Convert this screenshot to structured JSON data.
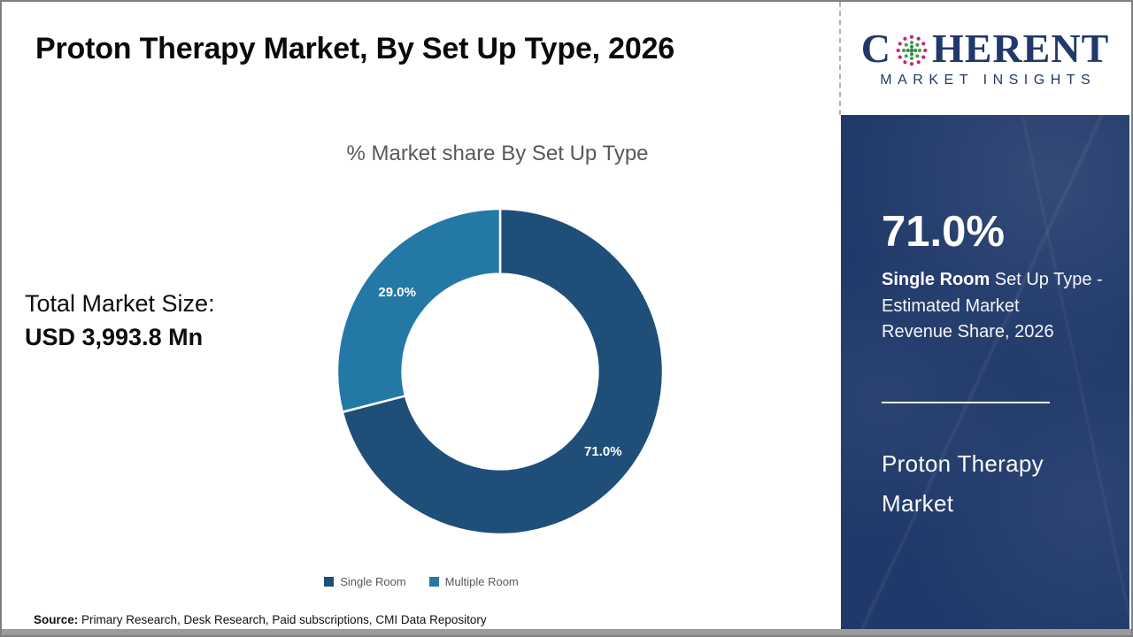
{
  "header": {
    "title": "Proton Therapy Market, By Set Up Type, 2026",
    "logo": {
      "text_c": "C",
      "text_rest": "HERENT",
      "subtitle": "MARKET INSIGHTS",
      "globe_icon": "dot-globe",
      "navy": "#21386b",
      "dot_green": "#3fa34d",
      "dot_magenta": "#c2286f"
    }
  },
  "chart": {
    "title": "% Market share By Set Up Type",
    "total_label": "Total Market Size:",
    "total_value": "USD 3,993.8 Mn"
  },
  "chart_data": {
    "type": "pie",
    "subtype": "donut",
    "title": "% Market share By Set Up Type",
    "categories": [
      "Single Room",
      "Multiple Room"
    ],
    "values": [
      71.0,
      29.0
    ],
    "labels": [
      "71.0%",
      "29.0%"
    ],
    "colors": [
      "#1f4e79",
      "#2478a6"
    ],
    "start_angle_deg": 0,
    "direction": "clockwise",
    "inner_radius_ratio": 0.6,
    "legend_position": "bottom"
  },
  "sidebar": {
    "background": "#20396a",
    "stat_value": "71.0%",
    "desc_bold": "Single Room",
    "desc_line1_rest": " Set Up Type -",
    "desc_line2": "Estimated Market",
    "desc_line3": "Revenue Share, 2026",
    "name_line1": "Proton Therapy",
    "name_line2": "Market"
  },
  "footer": {
    "source_label": "Source:",
    "source_text": " Primary Research, Desk Research, Paid subscriptions, CMI Data Repository"
  }
}
